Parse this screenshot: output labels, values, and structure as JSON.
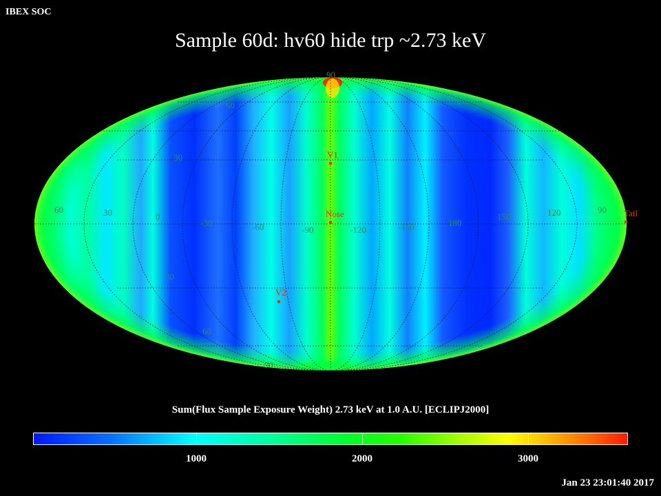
{
  "header": {
    "org_label": "IBEX SOC",
    "title": "Sample 60d: hv60 hide trp ~2.73 keV"
  },
  "map": {
    "projection": "Mollweide ellipse",
    "grid": true,
    "label_color": "#2e8b57",
    "marker_color": "#e03020",
    "latitude_labels": [
      "90",
      "60",
      "30",
      "30",
      "60",
      "90"
    ],
    "longitude_labels": [
      "60",
      "30",
      "0",
      "-30",
      "-60",
      "-90",
      "-120",
      "-150",
      "180",
      "150",
      "120",
      "90"
    ],
    "markers": [
      {
        "label": "V1"
      },
      {
        "label": "Nose"
      },
      {
        "label": "V2"
      },
      {
        "label": "Tail"
      }
    ]
  },
  "colorbar": {
    "title": "Sum(Flux Sample Exposure Weight)  2.73 keV at 1.0 A.U. [ECLIPJ2000]",
    "ticks": [
      "1000",
      "2000",
      "3000"
    ],
    "colors": [
      "#0018ff",
      "#00ffff",
      "#00ff30",
      "#ffff00",
      "#ff1a00"
    ]
  },
  "footer": {
    "timestamp": "Jan 23 23:01:40 2017"
  }
}
